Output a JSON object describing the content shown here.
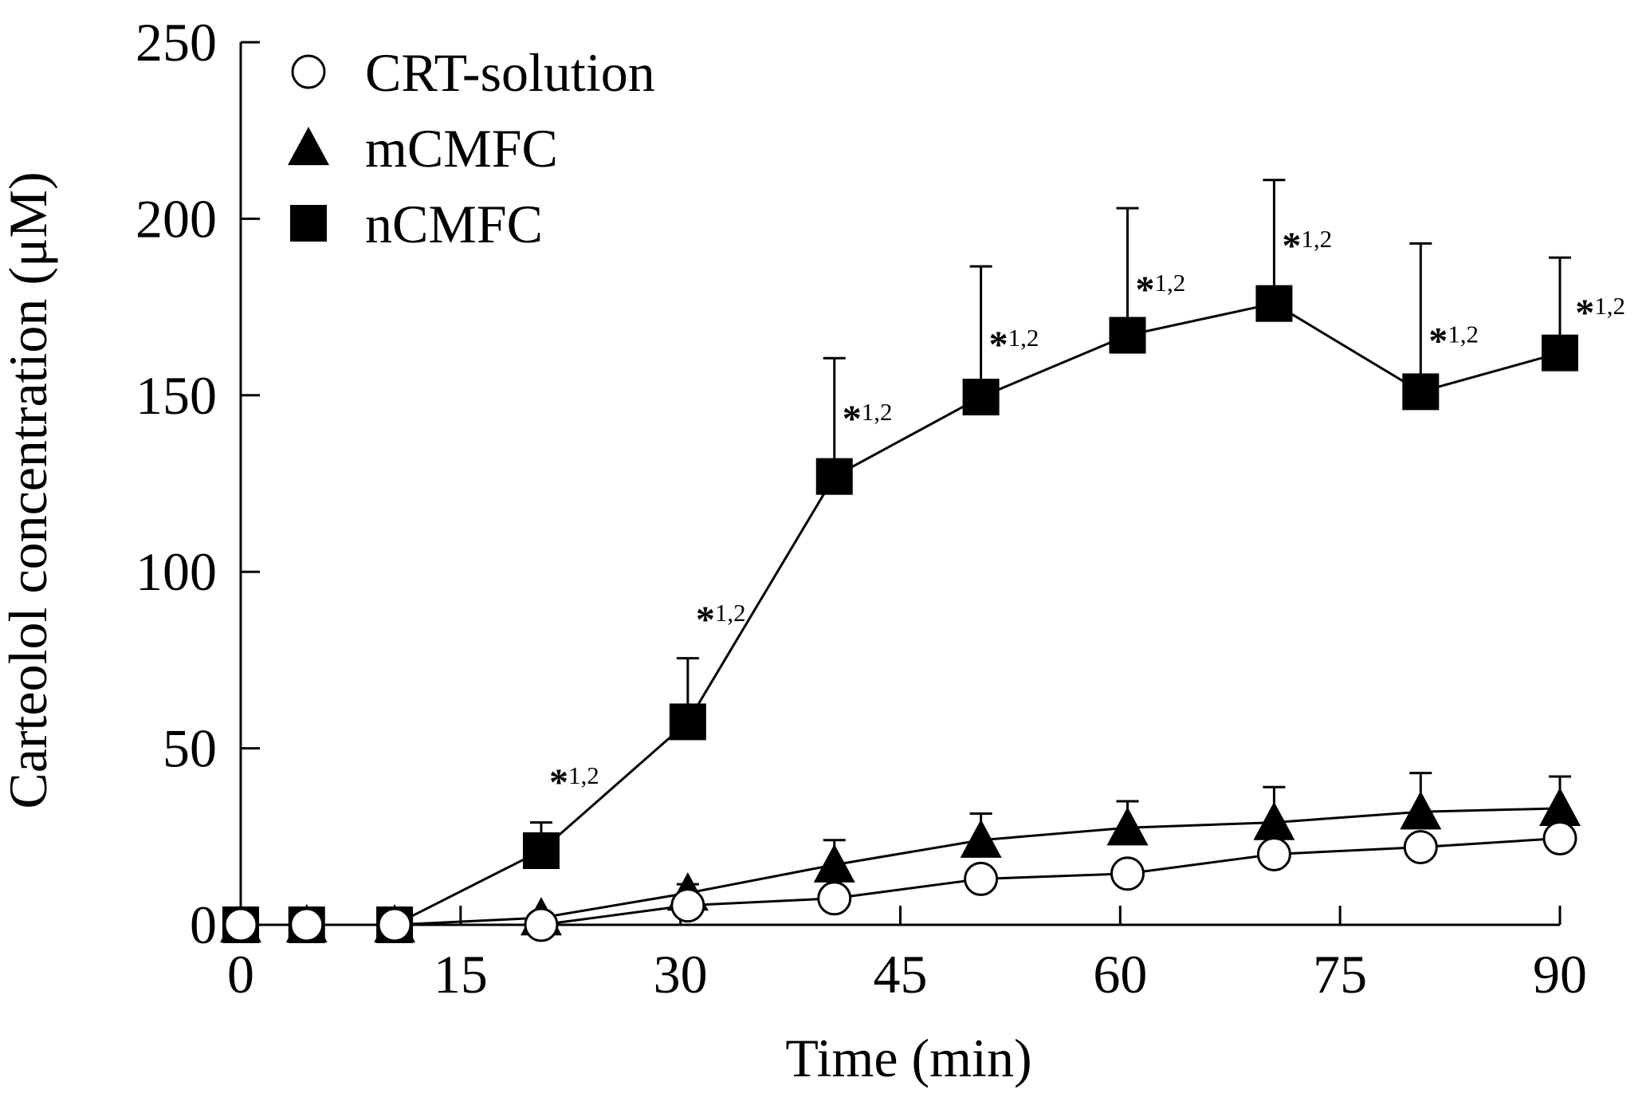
{
  "chart_data": {
    "type": "line",
    "title": "",
    "xlabel": "Time (min)",
    "ylabel": "Carteolol concentration (μM)",
    "xlim": [
      0,
      90
    ],
    "ylim": [
      0,
      250
    ],
    "xticks": [
      0,
      15,
      30,
      45,
      60,
      75,
      90
    ],
    "yticks": [
      0,
      50,
      100,
      150,
      200,
      250
    ],
    "grid": false,
    "legend_position": "top-left",
    "series": [
      {
        "name": "CRT-solution",
        "marker": "open-circle",
        "color": "#000000",
        "x": [
          0,
          4.5,
          10.5,
          20.5,
          30.5,
          40.5,
          50.5,
          60.5,
          70.5,
          80.5,
          90
        ],
        "y": [
          0,
          0,
          0,
          0,
          5.5,
          7.5,
          13,
          14.5,
          20,
          22,
          24.5
        ],
        "err": [
          0,
          0,
          0,
          0,
          0,
          0,
          0,
          0,
          0,
          0,
          0
        ]
      },
      {
        "name": "mCMFC",
        "marker": "filled-triangle",
        "color": "#000000",
        "x": [
          0,
          4.5,
          10.5,
          20.5,
          30.5,
          40.5,
          50.5,
          60.5,
          70.5,
          80.5,
          90
        ],
        "y": [
          0,
          0,
          0,
          2,
          9,
          17,
          24,
          27.5,
          29,
          32,
          33
        ],
        "err": [
          0,
          0,
          0,
          0,
          2.5,
          7,
          7.5,
          7.5,
          10,
          11,
          9
        ]
      },
      {
        "name": "nCMFC",
        "marker": "filled-square",
        "color": "#000000",
        "x": [
          0,
          4.5,
          10.5,
          20.5,
          30.5,
          40.5,
          50.5,
          60.5,
          70.5,
          80.5,
          90
        ],
        "y": [
          0,
          0,
          0,
          21,
          57.5,
          127,
          149.5,
          167,
          176,
          151,
          162
        ],
        "err": [
          0,
          0,
          0,
          8,
          18,
          33.5,
          37,
          36,
          35,
          42,
          27
        ]
      }
    ],
    "annotations": [
      {
        "x": 20.5,
        "y": 40,
        "star": "*",
        "sup": "1,2"
      },
      {
        "x": 30.5,
        "y": 86,
        "star": "*",
        "sup": "1,2"
      },
      {
        "x": 40.5,
        "y": 143,
        "star": "*",
        "sup": "1,2"
      },
      {
        "x": 50.5,
        "y": 164,
        "star": "*",
        "sup": "1,2"
      },
      {
        "x": 60.5,
        "y": 179.5,
        "star": "*",
        "sup": "1,2"
      },
      {
        "x": 70.5,
        "y": 192,
        "star": "*",
        "sup": "1,2"
      },
      {
        "x": 80.5,
        "y": 165,
        "star": "*",
        "sup": "1,2"
      },
      {
        "x": 90.5,
        "y": 173,
        "star": "*",
        "sup": "1,2"
      }
    ]
  }
}
